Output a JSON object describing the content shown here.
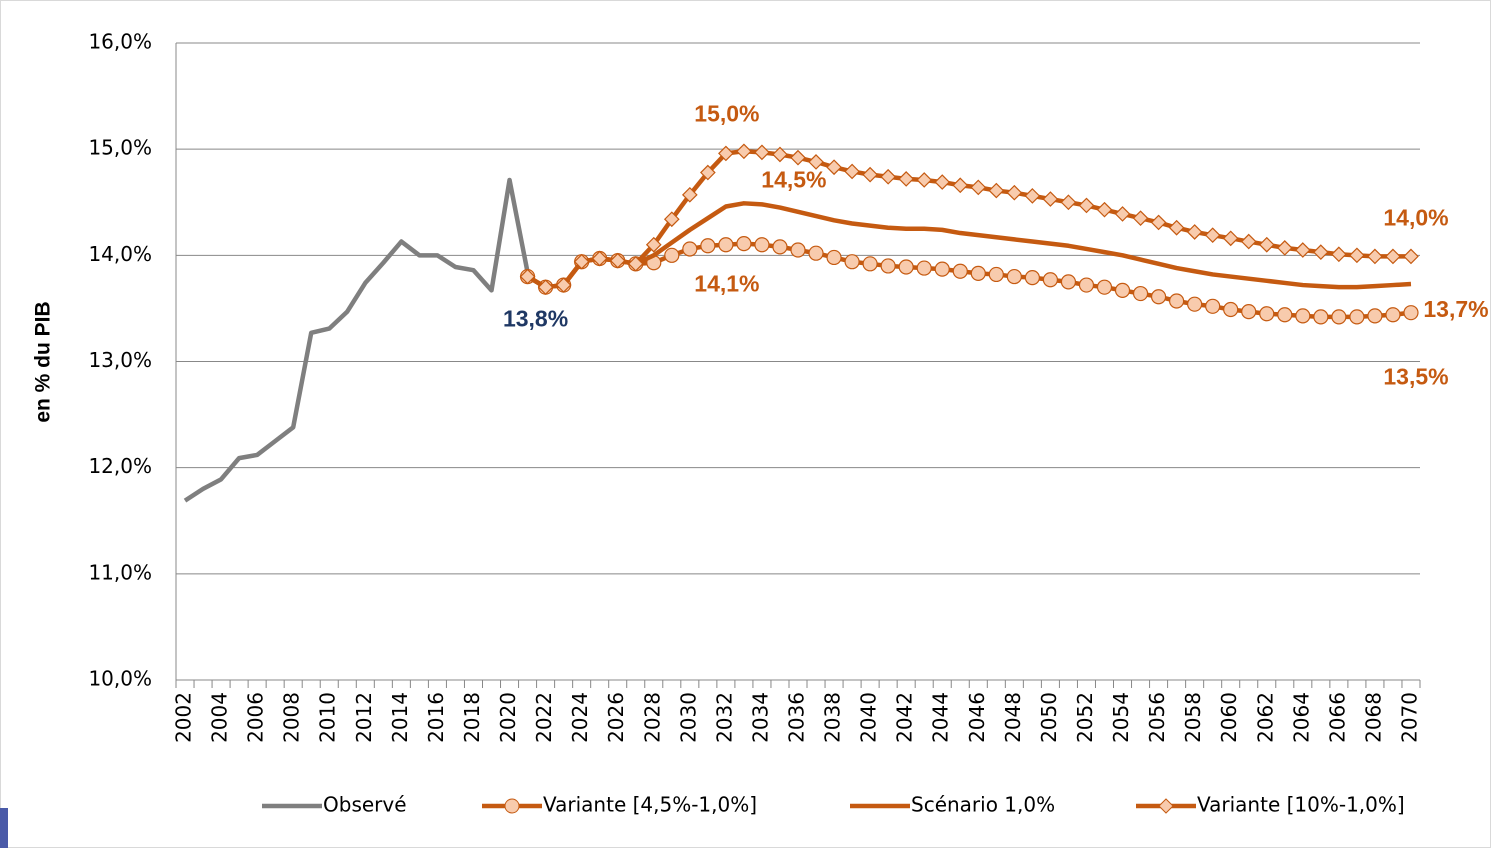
{
  "chart_data": {
    "type": "line",
    "y_label": "en % du PIB",
    "categories": [
      "2002",
      null,
      "2004",
      null,
      "2006",
      null,
      "2008",
      null,
      "2010",
      null,
      "2012",
      null,
      "2014",
      null,
      "2016",
      null,
      "2018",
      null,
      "2020",
      null,
      "2022",
      null,
      "2024",
      null,
      "2026",
      null,
      "2028",
      null,
      "2030",
      null,
      "2032",
      null,
      "2034",
      null,
      "2036",
      null,
      "2038",
      null,
      "2040",
      null,
      "2042",
      null,
      "2044",
      null,
      "2046",
      null,
      "2048",
      null,
      "2050",
      null,
      "2052",
      null,
      "2054",
      null,
      "2056",
      null,
      "2058",
      null,
      "2060",
      null,
      "2062",
      null,
      "2064",
      null,
      "2066",
      null,
      "2068",
      null,
      "2070"
    ],
    "ylim": [
      10,
      16
    ],
    "yticks": [
      {
        "value": 10,
        "label": "10,0%"
      },
      {
        "value": 11,
        "label": "11,0%"
      },
      {
        "value": 12,
        "label": "12,0%"
      },
      {
        "value": 13,
        "label": "13,0%"
      },
      {
        "value": 14,
        "label": "14,0%"
      },
      {
        "value": 15,
        "label": "15,0%"
      },
      {
        "value": 16,
        "label": "16,0%"
      }
    ],
    "grid": true,
    "legend": "bottom",
    "series": [
      {
        "name": "Observé",
        "color": "#7f7f7f",
        "marker": "none",
        "label_color": "#1f3864",
        "values": [
          11.69,
          11.8,
          11.89,
          12.09,
          12.12,
          12.25,
          12.38,
          13.27,
          13.31,
          13.47,
          13.74,
          13.93,
          14.13,
          14.0,
          14.0,
          13.89,
          13.86,
          13.67,
          14.71,
          13.84,
          null,
          null,
          null,
          null,
          null,
          null,
          null,
          null,
          null,
          null,
          null,
          null,
          null,
          null,
          null,
          null,
          null,
          null,
          null,
          null,
          null,
          null,
          null,
          null,
          null,
          null,
          null,
          null,
          null,
          null,
          null,
          null,
          null,
          null,
          null,
          null,
          null,
          null,
          null,
          null,
          null,
          null,
          null,
          null,
          null,
          null,
          null,
          null,
          null
        ],
        "value_labels": [
          null,
          null,
          null,
          null,
          null,
          null,
          null,
          null,
          null,
          null,
          null,
          null,
          null,
          null,
          null,
          null,
          null,
          null,
          null,
          "13,8%",
          null,
          null,
          null,
          null,
          null,
          null,
          null,
          null,
          null,
          null,
          null,
          null,
          null,
          null,
          null,
          null,
          null,
          null,
          null,
          null,
          null,
          null,
          null,
          null,
          null,
          null,
          null,
          null,
          null,
          null,
          null,
          null,
          null,
          null,
          null,
          null,
          null,
          null,
          null,
          null,
          null,
          null,
          null,
          null,
          null,
          null,
          null,
          null,
          null
        ]
      },
      {
        "name": "Variante [4,5%-1,0%]",
        "color": "#c55a11",
        "marker": "circle",
        "marker_fill": "#f8cbad",
        "label_color": "#c55a11",
        "values": [
          null,
          null,
          null,
          null,
          null,
          null,
          null,
          null,
          null,
          null,
          null,
          null,
          null,
          null,
          null,
          null,
          null,
          null,
          null,
          13.8,
          13.7,
          13.72,
          13.94,
          13.97,
          13.95,
          13.92,
          13.93,
          14.0,
          14.06,
          14.09,
          14.1,
          14.11,
          14.1,
          14.08,
          14.05,
          14.02,
          13.98,
          13.94,
          13.92,
          13.9,
          13.89,
          13.88,
          13.87,
          13.85,
          13.83,
          13.82,
          13.8,
          13.79,
          13.77,
          13.75,
          13.72,
          13.7,
          13.67,
          13.64,
          13.61,
          13.57,
          13.54,
          13.52,
          13.49,
          13.47,
          13.45,
          13.44,
          13.43,
          13.42,
          13.42,
          13.42,
          13.43,
          13.44,
          13.46
        ],
        "value_labels": [
          null,
          null,
          null,
          null,
          null,
          null,
          null,
          null,
          null,
          null,
          null,
          null,
          null,
          null,
          null,
          null,
          null,
          null,
          null,
          null,
          null,
          null,
          null,
          null,
          null,
          null,
          null,
          null,
          null,
          null,
          null,
          "14,1%",
          null,
          null,
          null,
          null,
          null,
          null,
          null,
          null,
          null,
          null,
          null,
          null,
          null,
          null,
          null,
          null,
          null,
          null,
          null,
          null,
          null,
          null,
          null,
          null,
          null,
          null,
          null,
          null,
          null,
          null,
          null,
          null,
          null,
          null,
          null,
          null,
          "13,5%"
        ]
      },
      {
        "name": "Scénario 1,0%",
        "color": "#c55a11",
        "marker": "none",
        "label_color": "#c55a11",
        "values": [
          null,
          null,
          null,
          null,
          null,
          null,
          null,
          null,
          null,
          null,
          null,
          null,
          null,
          null,
          null,
          null,
          null,
          null,
          null,
          13.8,
          13.7,
          13.72,
          13.94,
          13.97,
          13.95,
          13.92,
          14.0,
          14.12,
          14.24,
          14.35,
          14.46,
          14.49,
          14.48,
          14.45,
          14.41,
          14.37,
          14.33,
          14.3,
          14.28,
          14.26,
          14.25,
          14.25,
          14.24,
          14.21,
          14.19,
          14.17,
          14.15,
          14.13,
          14.11,
          14.09,
          14.06,
          14.03,
          14.0,
          13.96,
          13.92,
          13.88,
          13.85,
          13.82,
          13.8,
          13.78,
          13.76,
          13.74,
          13.72,
          13.71,
          13.7,
          13.7,
          13.71,
          13.72,
          13.73
        ],
        "value_labels": [
          null,
          null,
          null,
          null,
          null,
          null,
          null,
          null,
          null,
          null,
          null,
          null,
          null,
          null,
          null,
          null,
          null,
          null,
          null,
          null,
          null,
          null,
          null,
          null,
          null,
          null,
          null,
          null,
          null,
          null,
          null,
          "14,5%",
          null,
          null,
          null,
          null,
          null,
          null,
          null,
          null,
          null,
          null,
          null,
          null,
          null,
          null,
          null,
          null,
          null,
          null,
          null,
          null,
          null,
          null,
          null,
          null,
          null,
          null,
          null,
          null,
          null,
          null,
          null,
          null,
          null,
          null,
          null,
          null,
          "13,7%"
        ]
      },
      {
        "name": "Variante [10%-1,0%]",
        "color": "#c55a11",
        "marker": "diamond",
        "marker_fill": "#f8cbad",
        "label_color": "#c55a11",
        "values": [
          null,
          null,
          null,
          null,
          null,
          null,
          null,
          null,
          null,
          null,
          null,
          null,
          null,
          null,
          null,
          null,
          null,
          null,
          null,
          13.8,
          13.7,
          13.72,
          13.94,
          13.97,
          13.95,
          13.92,
          14.1,
          14.34,
          14.57,
          14.78,
          14.96,
          14.98,
          14.97,
          14.95,
          14.92,
          14.88,
          14.83,
          14.79,
          14.76,
          14.74,
          14.72,
          14.71,
          14.69,
          14.66,
          14.64,
          14.61,
          14.59,
          14.56,
          14.53,
          14.5,
          14.47,
          14.43,
          14.39,
          14.35,
          14.31,
          14.26,
          14.22,
          14.19,
          14.16,
          14.13,
          14.1,
          14.07,
          14.05,
          14.03,
          14.01,
          14.0,
          13.99,
          13.99,
          13.99
        ],
        "value_labels": [
          null,
          null,
          null,
          null,
          null,
          null,
          null,
          null,
          null,
          null,
          null,
          null,
          null,
          null,
          null,
          null,
          null,
          null,
          null,
          null,
          null,
          null,
          null,
          null,
          null,
          null,
          null,
          null,
          null,
          null,
          null,
          "15,0%",
          null,
          null,
          null,
          null,
          null,
          null,
          null,
          null,
          null,
          null,
          null,
          null,
          null,
          null,
          null,
          null,
          null,
          null,
          null,
          null,
          null,
          null,
          null,
          null,
          null,
          null,
          null,
          null,
          null,
          null,
          null,
          null,
          null,
          null,
          null,
          null,
          "14,0%"
        ]
      }
    ]
  }
}
